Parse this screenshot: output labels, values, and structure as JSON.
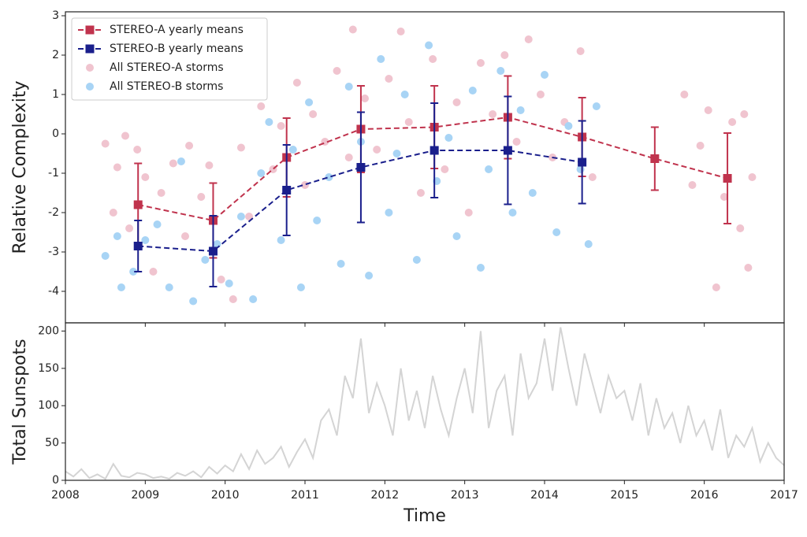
{
  "chart_data": [
    {
      "type": "scatter",
      "ylabel": "Relative Complexity",
      "xlim": [
        2008,
        2017
      ],
      "xticks": [
        2008,
        2009,
        2010,
        2011,
        2012,
        2013,
        2014,
        2015,
        2016,
        2017
      ],
      "ylim": [
        -4.8,
        3.1
      ],
      "yticks": [
        -4,
        -3,
        -2,
        -1,
        0,
        1,
        2,
        3
      ],
      "legend": "upper left",
      "series": [
        {
          "name": "STEREO-A yearly means",
          "color": "#c0334d",
          "kind": "errorbar-line",
          "x": [
            2008.91,
            2009.85,
            2010.77,
            2011.7,
            2012.62,
            2013.54,
            2014.47,
            2015.38,
            2016.29
          ],
          "values": [
            -1.8,
            -2.2,
            -0.6,
            0.12,
            0.17,
            0.42,
            -0.08,
            -0.63,
            -1.13
          ],
          "errors": [
            1.05,
            0.95,
            1.0,
            1.1,
            1.05,
            1.05,
            1.0,
            0.8,
            1.15
          ]
        },
        {
          "name": "STEREO-B yearly means",
          "color": "#1a1f8c",
          "kind": "errorbar-line",
          "x": [
            2008.91,
            2009.85,
            2010.77,
            2011.7,
            2012.62,
            2013.54,
            2014.47
          ],
          "values": [
            -2.85,
            -2.98,
            -1.43,
            -0.85,
            -0.42,
            -0.42,
            -0.72
          ],
          "errors": [
            0.65,
            0.9,
            1.15,
            1.4,
            1.2,
            1.37,
            1.05
          ]
        },
        {
          "name": "All STEREO-A storms",
          "color": "#f0c4cf",
          "kind": "points",
          "x": [
            2008.5,
            2008.6,
            2008.65,
            2008.75,
            2008.8,
            2008.9,
            2009.0,
            2009.1,
            2009.2,
            2009.35,
            2009.5,
            2009.55,
            2009.7,
            2009.8,
            2009.95,
            2010.1,
            2010.2,
            2010.3,
            2010.45,
            2010.6,
            2010.7,
            2010.9,
            2011.0,
            2011.1,
            2011.25,
            2011.4,
            2011.55,
            2011.6,
            2011.75,
            2011.9,
            2012.05,
            2012.2,
            2012.3,
            2012.45,
            2012.6,
            2012.75,
            2012.9,
            2013.05,
            2013.2,
            2013.35,
            2013.5,
            2013.65,
            2013.8,
            2013.95,
            2014.1,
            2014.25,
            2014.45,
            2014.6,
            2015.75,
            2015.85,
            2015.95,
            2016.05,
            2016.15,
            2016.25,
            2016.35,
            2016.45,
            2016.55,
            2016.6,
            2016.5
          ],
          "values": [
            -0.25,
            -2.0,
            -0.85,
            -0.05,
            -2.4,
            -0.4,
            -1.1,
            -3.5,
            -1.5,
            -0.75,
            -2.6,
            -0.3,
            -1.6,
            -0.8,
            -3.7,
            -4.2,
            -0.35,
            -2.1,
            0.7,
            -0.9,
            0.2,
            1.3,
            -1.3,
            0.5,
            -0.2,
            1.6,
            -0.6,
            2.65,
            0.9,
            -0.4,
            1.4,
            2.6,
            0.3,
            -1.5,
            1.9,
            -0.9,
            0.8,
            -2.0,
            1.8,
            0.5,
            2.0,
            -0.2,
            2.4,
            1.0,
            -0.6,
            0.3,
            2.1,
            -1.1,
            1.0,
            -1.3,
            -0.3,
            0.6,
            -3.9,
            -1.6,
            0.3,
            -2.4,
            -3.4,
            -1.1,
            0.5
          ]
        },
        {
          "name": "All STEREO-B storms",
          "color": "#a8d4f5",
          "kind": "points",
          "x": [
            2008.5,
            2008.65,
            2008.7,
            2008.85,
            2009.0,
            2009.15,
            2009.3,
            2009.45,
            2009.6,
            2009.75,
            2009.9,
            2010.05,
            2010.2,
            2010.35,
            2010.45,
            2010.55,
            2010.7,
            2010.85,
            2010.95,
            2011.05,
            2011.15,
            2011.3,
            2011.45,
            2011.55,
            2011.7,
            2011.8,
            2011.95,
            2012.05,
            2012.15,
            2012.25,
            2012.4,
            2012.55,
            2012.65,
            2012.8,
            2012.9,
            2013.1,
            2013.2,
            2013.3,
            2013.45,
            2013.6,
            2013.7,
            2013.85,
            2014.0,
            2014.15,
            2014.3,
            2014.45,
            2014.55,
            2014.65
          ],
          "values": [
            -3.1,
            -2.6,
            -3.9,
            -3.5,
            -2.7,
            -2.3,
            -3.9,
            -0.7,
            -4.25,
            -3.2,
            -2.8,
            -3.8,
            -2.1,
            -4.2,
            -1.0,
            0.3,
            -2.7,
            -0.4,
            -3.9,
            0.8,
            -2.2,
            -1.1,
            -3.3,
            1.2,
            -0.2,
            -3.6,
            1.9,
            -2.0,
            -0.5,
            1.0,
            -3.2,
            2.25,
            -1.2,
            -0.1,
            -2.6,
            1.1,
            -3.4,
            -0.9,
            1.6,
            -2.0,
            0.6,
            -1.5,
            1.5,
            -2.5,
            0.2,
            -0.9,
            -2.8,
            0.7
          ]
        }
      ]
    },
    {
      "type": "line",
      "ylabel": "Total Sunspots",
      "xlabel": "Time",
      "xlim": [
        2008,
        2017
      ],
      "xticks": [
        2008,
        2009,
        2010,
        2011,
        2012,
        2013,
        2014,
        2015,
        2016,
        2017
      ],
      "ylim": [
        0,
        211
      ],
      "yticks": [
        0,
        50,
        100,
        150,
        200
      ],
      "series": [
        {
          "color": "#d4d4d4",
          "x": [
            2008.0,
            2008.1,
            2008.2,
            2008.3,
            2008.4,
            2008.5,
            2008.6,
            2008.7,
            2008.8,
            2008.9,
            2009.0,
            2009.1,
            2009.2,
            2009.3,
            2009.4,
            2009.5,
            2009.6,
            2009.7,
            2009.8,
            2009.9,
            2010.0,
            2010.1,
            2010.2,
            2010.3,
            2010.4,
            2010.5,
            2010.6,
            2010.7,
            2010.8,
            2010.9,
            2011.0,
            2011.1,
            2011.2,
            2011.3,
            2011.4,
            2011.5,
            2011.6,
            2011.7,
            2011.8,
            2011.9,
            2012.0,
            2012.1,
            2012.2,
            2012.3,
            2012.4,
            2012.5,
            2012.6,
            2012.7,
            2012.8,
            2012.9,
            2013.0,
            2013.1,
            2013.2,
            2013.3,
            2013.4,
            2013.5,
            2013.6,
            2013.7,
            2013.8,
            2013.9,
            2014.0,
            2014.1,
            2014.2,
            2014.3,
            2014.4,
            2014.5,
            2014.6,
            2014.7,
            2014.8,
            2014.9,
            2015.0,
            2015.1,
            2015.2,
            2015.3,
            2015.4,
            2015.5,
            2015.6,
            2015.7,
            2015.8,
            2015.9,
            2016.0,
            2016.1,
            2016.2,
            2016.3,
            2016.4,
            2016.5,
            2016.6,
            2016.7,
            2016.8,
            2016.9,
            2017.0
          ],
          "values": [
            12,
            5,
            15,
            3,
            8,
            2,
            22,
            6,
            4,
            10,
            8,
            3,
            5,
            2,
            10,
            6,
            12,
            4,
            18,
            9,
            20,
            12,
            35,
            15,
            40,
            22,
            30,
            45,
            18,
            38,
            55,
            30,
            80,
            95,
            60,
            140,
            110,
            190,
            90,
            130,
            100,
            60,
            150,
            80,
            120,
            70,
            140,
            95,
            60,
            110,
            150,
            90,
            200,
            70,
            120,
            140,
            60,
            170,
            110,
            130,
            190,
            120,
            205,
            150,
            100,
            170,
            130,
            90,
            140,
            110,
            120,
            80,
            130,
            60,
            110,
            70,
            90,
            50,
            100,
            60,
            80,
            40,
            95,
            30,
            60,
            45,
            70,
            25,
            50,
            30,
            20
          ]
        }
      ]
    }
  ]
}
